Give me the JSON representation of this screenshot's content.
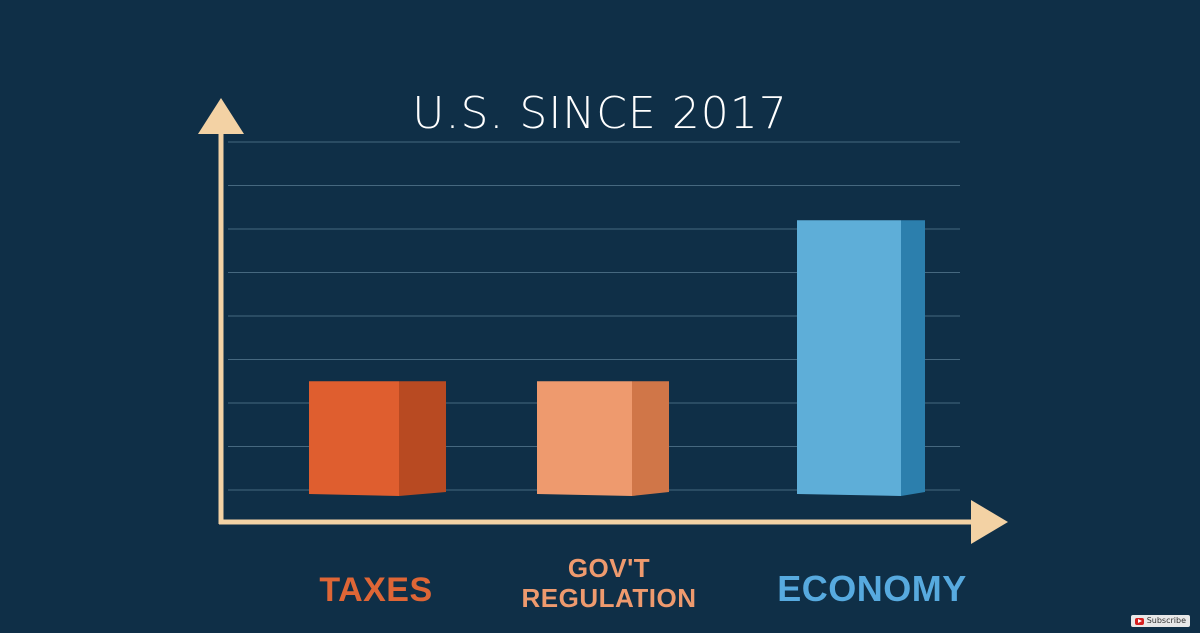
{
  "chart_data": {
    "type": "bar",
    "title": "U.S. SINCE 2017",
    "categories": [
      "TAXES",
      "GOV'T\nREGULATION",
      "ECONOMY"
    ],
    "values": [
      2.5,
      2.5,
      6.2
    ],
    "ylim": [
      0,
      8
    ],
    "grid": true,
    "xlabel": "",
    "ylabel": "",
    "colors": {
      "background": "#0f2f47",
      "axis": "#f3d2a4",
      "grid": "#5e8197",
      "bar_fronts": [
        "#df5e2f",
        "#ee9a6e",
        "#5eaed8"
      ],
      "bar_sides": [
        "#b84a22",
        "#d07648",
        "#2c7fad"
      ],
      "label_colors": [
        "#df6636",
        "#ee9a6e",
        "#57aadf"
      ]
    }
  },
  "overlay": {
    "subscribe_label": "Subscribe",
    "subscribe_icon": "youtube-icon"
  }
}
